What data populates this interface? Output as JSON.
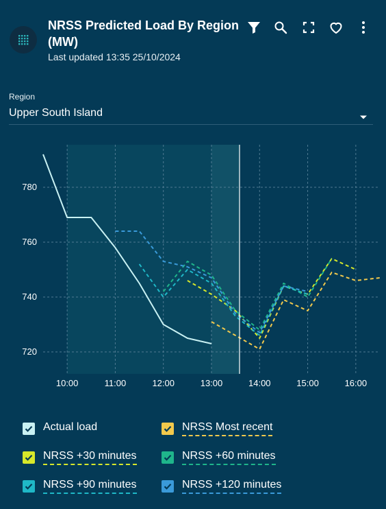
{
  "header": {
    "title": "NRSS Predicted Load By Region (MW)",
    "updated": "Last updated 13:35 25/10/2024",
    "tools": [
      "filter-icon",
      "search-icon",
      "fullscreen-icon",
      "favorite-icon",
      "more-icon"
    ]
  },
  "filter": {
    "label": "Region",
    "value": "Upper South Island"
  },
  "chart_data": {
    "type": "line",
    "x_ticks": [
      "10:00",
      "11:00",
      "12:00",
      "13:00",
      "14:00",
      "15:00",
      "16:00"
    ],
    "y_ticks": [
      720,
      740,
      760,
      780
    ],
    "ylim": [
      712,
      797
    ],
    "xlim": [
      "09:30",
      "16:30"
    ],
    "grid": true,
    "current_time": "13:35",
    "series": [
      {
        "name": "Actual load",
        "color": "#c9f1f3",
        "dashed": false,
        "x": [
          "09:30",
          "10:00",
          "10:30",
          "11:00",
          "11:30",
          "12:00",
          "12:30",
          "13:00"
        ],
        "y": [
          792,
          769,
          769,
          758,
          745,
          730,
          725,
          723
        ]
      },
      {
        "name": "NRSS Most recent",
        "color": "#f2c94c",
        "dashed": true,
        "x": [
          "13:00",
          "13:30",
          "14:00",
          "14:30",
          "15:00",
          "15:30",
          "16:00",
          "16:30"
        ],
        "y": [
          731,
          726,
          721,
          739,
          735,
          749,
          746,
          747
        ]
      },
      {
        "name": "NRSS +30 minutes",
        "color": "#d7e82a",
        "dashed": true,
        "x": [
          "12:30",
          "13:00",
          "13:30",
          "14:00",
          "14:30",
          "15:00",
          "15:30",
          "16:00"
        ],
        "y": [
          746,
          741,
          735,
          725,
          744,
          741,
          754,
          750
        ]
      },
      {
        "name": "NRSS +60 minutes",
        "color": "#1fb58b",
        "dashed": true,
        "x": [
          "12:00",
          "12:30",
          "13:00",
          "13:30",
          "14:00",
          "14:30",
          "15:00",
          "15:30"
        ],
        "y": [
          742,
          753,
          748,
          735,
          728,
          745,
          740,
          754
        ]
      },
      {
        "name": "NRSS +90 minutes",
        "color": "#1fb8c7",
        "dashed": true,
        "x": [
          "11:30",
          "12:00",
          "12:30",
          "13:00",
          "13:30",
          "14:00",
          "14:30",
          "15:00"
        ],
        "y": [
          752,
          740,
          750,
          745,
          733,
          726,
          744,
          741
        ]
      },
      {
        "name": "NRSS +120 minutes",
        "color": "#3a9ad9",
        "dashed": true,
        "x": [
          "11:00",
          "11:30",
          "12:00",
          "12:30",
          "13:00",
          "13:30",
          "14:00",
          "14:30",
          "15:00"
        ],
        "y": [
          764,
          764,
          753,
          751,
          747,
          734,
          727,
          744,
          742
        ]
      }
    ]
  },
  "legend": [
    {
      "label": "Actual load",
      "color": "#c9f1f3",
      "dashed": false
    },
    {
      "label": "NRSS Most recent",
      "color": "#f2c94c",
      "dashed": true
    },
    {
      "label": "NRSS +30 minutes",
      "color": "#d7e82a",
      "dashed": true
    },
    {
      "label": "NRSS +60 minutes",
      "color": "#1fb58b",
      "dashed": true
    },
    {
      "label": "NRSS +90 minutes",
      "color": "#1fb8c7",
      "dashed": true
    },
    {
      "label": "NRSS +120 minutes",
      "color": "#3a9ad9",
      "dashed": true
    }
  ]
}
